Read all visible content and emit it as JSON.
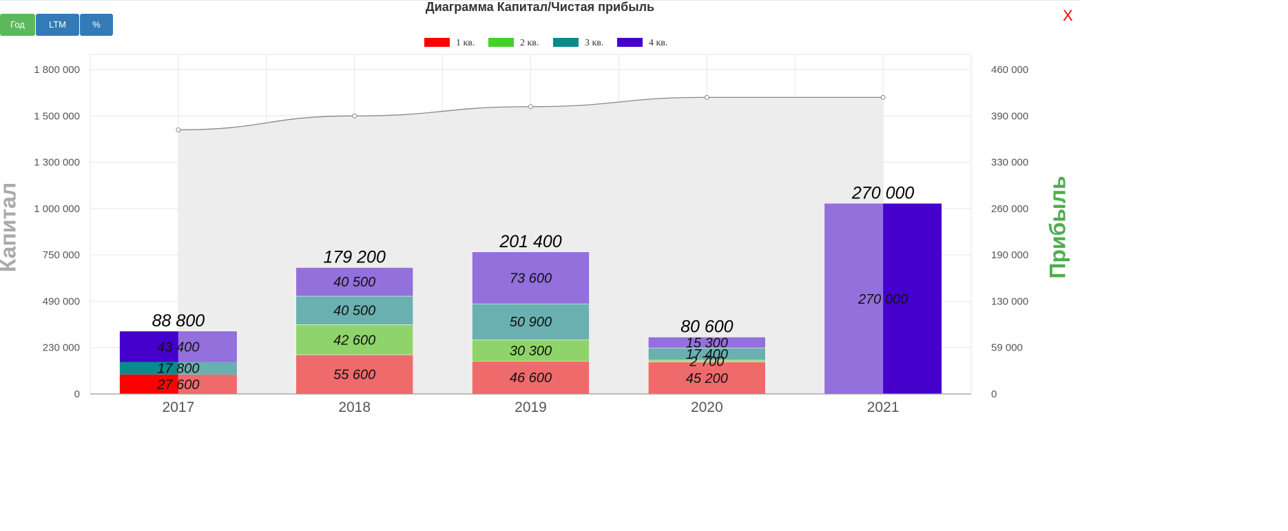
{
  "header": {
    "title": "Диаграмма Капитал/Чистая прибыль",
    "close_label": "X"
  },
  "toolbar": {
    "year_label": "Год",
    "ltm_label": "LTM",
    "percent_label": "%"
  },
  "colors": {
    "q1": "#ff0000",
    "q2": "#44d12a",
    "q3": "#0a8a8a",
    "q4": "#4500cc",
    "q1_light": "#ef6b6b",
    "q2_light": "#8fd46a",
    "q3_light": "#6ab0b0",
    "q4_light": "#9370db",
    "capital_line": "#888888",
    "capital_fill": "#ececec",
    "left_axis_label": "#aaaaaa",
    "right_axis_label": "#4cae4c"
  },
  "chart_data": {
    "type": "bar",
    "title": "Диаграмма Капитал/Чистая прибыль",
    "ylabel": "Капитал",
    "y2label": "Прибыль",
    "categories": [
      "2017",
      "2018",
      "2019",
      "2020",
      "2021"
    ],
    "legend": [
      "1 кв.",
      "2 кв.",
      "3 кв.",
      "4 кв."
    ],
    "legend_position": "top-center",
    "grid": true,
    "left_ticks": [
      "0",
      "230 000",
      "490 000",
      "750 000",
      "1 000 000",
      "1 300 000",
      "1 500 000",
      "1 800 000"
    ],
    "right_ticks": [
      "0",
      "59 000",
      "130 000",
      "190 000",
      "260 000",
      "330 000",
      "390 000",
      "460 000"
    ],
    "y2lim": [
      0,
      460000
    ],
    "profit_series": [
      {
        "name": "1 кв.",
        "values": [
          27600,
          55600,
          46600,
          45200,
          0
        ],
        "labels": [
          "27 600",
          "55 600",
          "46 600",
          "45 200",
          ""
        ]
      },
      {
        "name": "2 кв.",
        "values": [
          0,
          42600,
          30300,
          2700,
          0
        ],
        "labels": [
          "",
          "42 600",
          "30 300",
          "2 700",
          ""
        ]
      },
      {
        "name": "3 кв.",
        "values": [
          17800,
          40500,
          50900,
          17400,
          0
        ],
        "labels": [
          "17 800",
          "40 500",
          "50 900",
          "17 400",
          ""
        ]
      },
      {
        "name": "4 кв.",
        "values": [
          43400,
          40500,
          73600,
          15300,
          270000
        ],
        "labels": [
          "43 400",
          "40 500",
          "73 600",
          "15 300",
          "270 000"
        ]
      }
    ],
    "totals": [
      88800,
      179200,
      201400,
      80600,
      270000
    ],
    "total_labels": [
      "88 800",
      "179 200",
      "201 400",
      "80 600",
      "270 000"
    ],
    "capital": [
      1440000,
      1500000,
      1560000,
      1620000,
      1620000
    ]
  }
}
